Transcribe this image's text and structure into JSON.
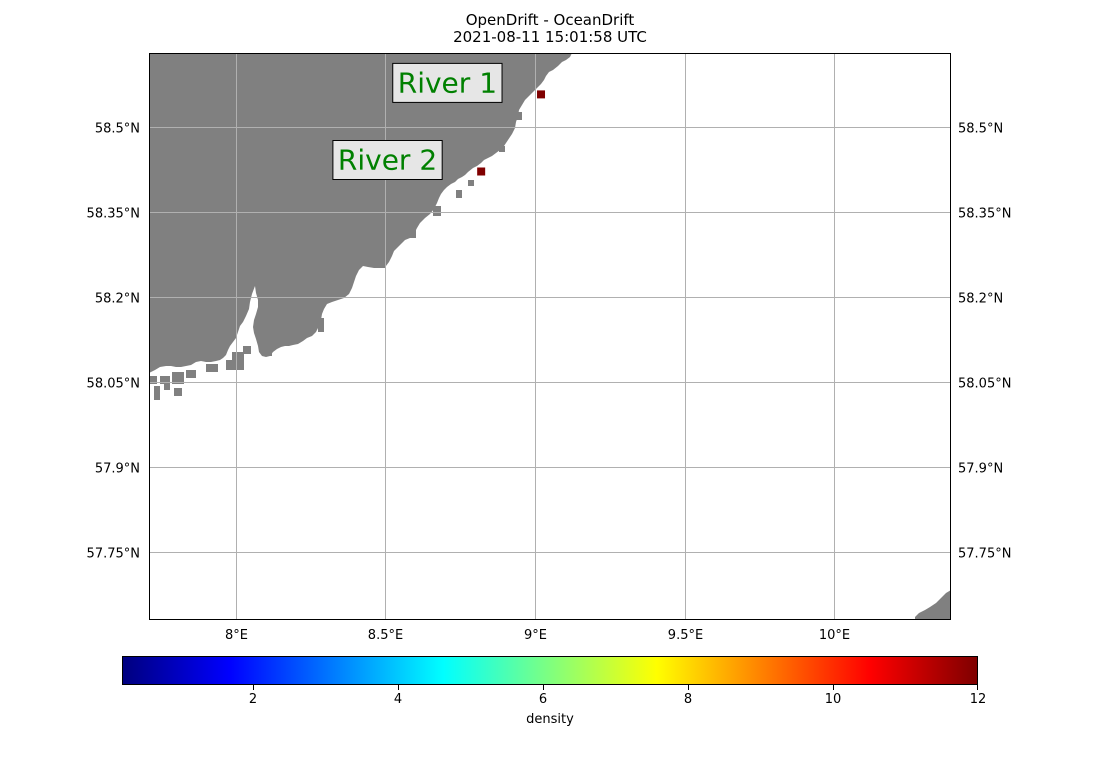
{
  "title": {
    "line1": "OpenDrift - OceanDrift",
    "line2": "2021-08-11 15:01:58 UTC"
  },
  "map": {
    "lon_range": [
      7.71,
      10.39
    ],
    "lat_range": [
      57.63,
      58.63
    ],
    "land_color": "#808080",
    "grid_color": "#b0b0b0",
    "lon_ticks": [
      {
        "value": 8.0,
        "label": "8°E"
      },
      {
        "value": 8.5,
        "label": "8.5°E"
      },
      {
        "value": 9.0,
        "label": "9°E"
      },
      {
        "value": 9.5,
        "label": "9.5°E"
      },
      {
        "value": 10.0,
        "label": "10°E"
      }
    ],
    "lat_ticks": [
      {
        "value": 58.5,
        "label": "58.5°N"
      },
      {
        "value": 58.35,
        "label": "58.35°N"
      },
      {
        "value": 58.2,
        "label": "58.2°N"
      },
      {
        "value": 58.05,
        "label": "58.05°N"
      },
      {
        "value": 57.9,
        "label": "57.9°N"
      },
      {
        "value": 57.75,
        "label": "57.75°N"
      }
    ],
    "rivers": [
      {
        "name": "River 1",
        "lon": 9.02,
        "lat": 58.557,
        "marker_color": "#800000"
      },
      {
        "name": "River 2",
        "lon": 8.82,
        "lat": 58.421,
        "marker_color": "#800000"
      }
    ]
  },
  "colorbar": {
    "label": "density",
    "min": 0.2,
    "max": 12,
    "colormap": "jet",
    "ticks": [
      {
        "value": 2,
        "label": "2"
      },
      {
        "value": 4,
        "label": "4"
      },
      {
        "value": 6,
        "label": "6"
      },
      {
        "value": 8,
        "label": "8"
      },
      {
        "value": 10,
        "label": "10"
      },
      {
        "value": 12,
        "label": "12"
      }
    ]
  }
}
